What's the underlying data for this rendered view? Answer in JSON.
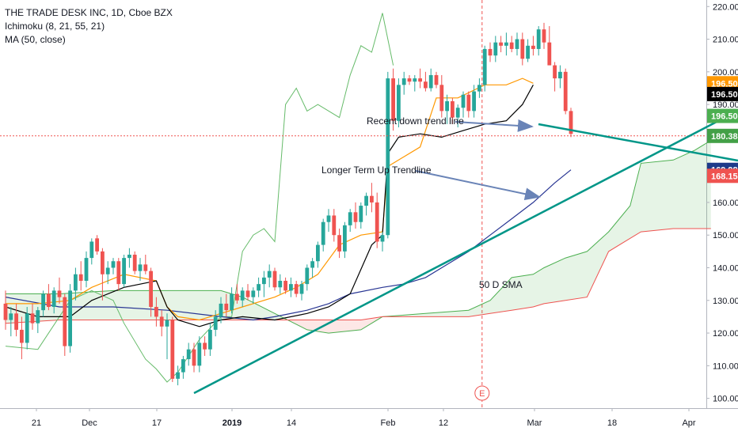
{
  "legend": {
    "symbol": "THE TRADE DESK INC, 1D, Cboe BZX",
    "ichimoku": "Ichimoku (8, 21, 55, 21)",
    "ma": "MA (50, close)"
  },
  "colors": {
    "up": "#26a69a",
    "down": "#ef5350",
    "conversion": "#000000",
    "base": "#ff9800",
    "lagging": "#66bb6a",
    "cloud_bull": "#4caf50",
    "cloud_bear": "#ef5350",
    "sma": "#2962ff",
    "trendline": "#009688",
    "arrow": "#6a84b7",
    "crosshair": "#ef5350"
  },
  "chart_data": {
    "type": "candlestick",
    "title": "THE TRADE DESK INC, 1D, Cboe BZX",
    "ylim": [
      97,
      222
    ],
    "y_ticks": [
      100,
      110,
      120,
      130,
      140,
      150,
      160,
      170,
      180,
      190,
      200,
      210,
      220
    ],
    "x_ticks": [
      "21",
      "Dec",
      "17",
      "2019",
      "14",
      "Feb",
      "12",
      "Mar",
      "18",
      "Apr"
    ],
    "price_labels": [
      {
        "value": "196.50",
        "y": 196.5,
        "color": "#ff9800",
        "text_color": "#ffffff"
      },
      {
        "value": "196.50",
        "y": 193.2,
        "color": "#000000",
        "text_color": "#ffffff"
      },
      {
        "value": "196.50",
        "y": 186.5,
        "color": "#4caf50",
        "text_color": "#ffffff"
      },
      {
        "value": "180.38",
        "y": 180.38,
        "color": "#43a047",
        "text_color": "#ffffff"
      },
      {
        "value": "169.98",
        "y": 169.98,
        "color": "#1e3a8a",
        "text_color": "#ffffff"
      },
      {
        "value": "168.15",
        "y": 168.15,
        "color": "#ef5350",
        "text_color": "#ffffff"
      }
    ],
    "annotations": [
      {
        "text": "Recent down trend line"
      },
      {
        "text": "Longer Term Up Trendline"
      },
      {
        "text": "50 D SMA"
      },
      {
        "text": "E"
      }
    ],
    "candles": [
      [
        129,
        133,
        121,
        124
      ],
      [
        124,
        128,
        119,
        126
      ],
      [
        126,
        129,
        119,
        121
      ],
      [
        121,
        125,
        112,
        117
      ],
      [
        117,
        128,
        115,
        126
      ],
      [
        126,
        129,
        121,
        123
      ],
      [
        123,
        128,
        120,
        127
      ],
      [
        127,
        133,
        125,
        132
      ],
      [
        132,
        135,
        127,
        128
      ],
      [
        128,
        134,
        126,
        133
      ],
      [
        133,
        137,
        129,
        131
      ],
      [
        131,
        132,
        113,
        116
      ],
      [
        116,
        135,
        114,
        133
      ],
      [
        133,
        140,
        130,
        138
      ],
      [
        138,
        142,
        133,
        136
      ],
      [
        136,
        145,
        134,
        143
      ],
      [
        143,
        149,
        141,
        148
      ],
      [
        149,
        150,
        144,
        145
      ],
      [
        145,
        146,
        130,
        138
      ],
      [
        138,
        142,
        135,
        140
      ],
      [
        140,
        143,
        138,
        142
      ],
      [
        142,
        143,
        133,
        135
      ],
      [
        135,
        144,
        134,
        143
      ],
      [
        143,
        146,
        140,
        144
      ],
      [
        144,
        145,
        138,
        139
      ],
      [
        139,
        143,
        136,
        141
      ],
      [
        141,
        144,
        138,
        139
      ],
      [
        139,
        140,
        125,
        128
      ],
      [
        128,
        131,
        122,
        125
      ],
      [
        125,
        127,
        119,
        122
      ],
      [
        122,
        126,
        112,
        124
      ],
      [
        124,
        125,
        105,
        106
      ],
      [
        106,
        110,
        104,
        108
      ],
      [
        108,
        113,
        106,
        112
      ],
      [
        112,
        117,
        110,
        115
      ],
      [
        115,
        117,
        108,
        110
      ],
      [
        110,
        119,
        108,
        117
      ],
      [
        117,
        119,
        113,
        115
      ],
      [
        115,
        123,
        113,
        121
      ],
      [
        121,
        127,
        119,
        125
      ],
      [
        125,
        131,
        123,
        129
      ],
      [
        129,
        132,
        125,
        127
      ],
      [
        127,
        134,
        126,
        132
      ],
      [
        132,
        135,
        129,
        130
      ],
      [
        130,
        134,
        128,
        133
      ],
      [
        133,
        135,
        130,
        131
      ],
      [
        131,
        134,
        129,
        133
      ],
      [
        133,
        137,
        131,
        135
      ],
      [
        135,
        139,
        131,
        137
      ],
      [
        137,
        141,
        134,
        139
      ],
      [
        139,
        140,
        133,
        134
      ],
      [
        134,
        138,
        132,
        136
      ],
      [
        136,
        137,
        132,
        133
      ],
      [
        133,
        137,
        131,
        135
      ],
      [
        135,
        136,
        131,
        132
      ],
      [
        132,
        136,
        130,
        135
      ],
      [
        135,
        141,
        133,
        140
      ],
      [
        140,
        143,
        137,
        142
      ],
      [
        142,
        148,
        140,
        147
      ],
      [
        147,
        155,
        145,
        154
      ],
      [
        154,
        158,
        151,
        156
      ],
      [
        156,
        158,
        148,
        150
      ],
      [
        150,
        152,
        143,
        145
      ],
      [
        145,
        154,
        143,
        153
      ],
      [
        153,
        158,
        151,
        157
      ],
      [
        157,
        160,
        152,
        154
      ],
      [
        154,
        160,
        152,
        159
      ],
      [
        159,
        163,
        156,
        162
      ],
      [
        162,
        166,
        157,
        160
      ],
      [
        160,
        163,
        146,
        148
      ],
      [
        148,
        151,
        145,
        150
      ],
      [
        150,
        200,
        149,
        198
      ],
      [
        198,
        201,
        182,
        185
      ],
      [
        185,
        198,
        183,
        196
      ],
      [
        196,
        200,
        193,
        198
      ],
      [
        198,
        199,
        196,
        197
      ],
      [
        197,
        199,
        194,
        198
      ],
      [
        198,
        201,
        195,
        197
      ],
      [
        197,
        200,
        194,
        195
      ],
      [
        195,
        201,
        194,
        199
      ],
      [
        199,
        200,
        195,
        196
      ],
      [
        196,
        199,
        186,
        188
      ],
      [
        188,
        193,
        184,
        191
      ],
      [
        191,
        192,
        184,
        186
      ],
      [
        186,
        190,
        183,
        189
      ],
      [
        189,
        194,
        186,
        193
      ],
      [
        193,
        194,
        186,
        188
      ],
      [
        188,
        196,
        186,
        194
      ],
      [
        194,
        198,
        192,
        196
      ],
      [
        196,
        208,
        194,
        207
      ],
      [
        207,
        209,
        203,
        205
      ],
      [
        205,
        211,
        203,
        209
      ],
      [
        209,
        211,
        206,
        208
      ],
      [
        208,
        212,
        205,
        209
      ],
      [
        209,
        211,
        206,
        207
      ],
      [
        207,
        212,
        205,
        210
      ],
      [
        210,
        212,
        202,
        204
      ],
      [
        204,
        210,
        203,
        208
      ],
      [
        208,
        211,
        205,
        207
      ],
      [
        207,
        214,
        205,
        213
      ],
      [
        213,
        215,
        207,
        209
      ],
      [
        209,
        214,
        202,
        202
      ],
      [
        202,
        203,
        194,
        198
      ],
      [
        198,
        202,
        195,
        200
      ],
      [
        200,
        201,
        187,
        188
      ],
      [
        188,
        189,
        180,
        181
      ]
    ],
    "series": [
      {
        "name": "Conversion",
        "values": [
          [
            0,
            128
          ],
          [
            6,
            125
          ],
          [
            12,
            125
          ],
          [
            16,
            130
          ],
          [
            22,
            134
          ],
          [
            28,
            136
          ],
          [
            30,
            128
          ],
          [
            32,
            124
          ],
          [
            36,
            122
          ],
          [
            40,
            124
          ],
          [
            44,
            125
          ],
          [
            50,
            124
          ],
          [
            56,
            126
          ],
          [
            60,
            128
          ],
          [
            64,
            132
          ],
          [
            68,
            147
          ],
          [
            70,
            150
          ],
          [
            71,
            175
          ],
          [
            73,
            180
          ],
          [
            77,
            181
          ],
          [
            81,
            180
          ],
          [
            85,
            182
          ],
          [
            89,
            184
          ],
          [
            93,
            185
          ],
          [
            96,
            190
          ],
          [
            98,
            196
          ]
        ]
      },
      {
        "name": "Base",
        "values": [
          [
            0,
            129
          ],
          [
            6,
            129
          ],
          [
            12,
            130
          ],
          [
            16,
            134
          ],
          [
            22,
            138
          ],
          [
            28,
            136
          ],
          [
            30,
            128
          ],
          [
            32,
            125
          ],
          [
            36,
            124
          ],
          [
            40,
            126
          ],
          [
            44,
            128
          ],
          [
            50,
            131
          ],
          [
            54,
            134
          ],
          [
            58,
            138
          ],
          [
            62,
            147
          ],
          [
            66,
            150
          ],
          [
            70,
            151
          ],
          [
            71,
            171
          ],
          [
            74,
            174
          ],
          [
            77,
            177
          ],
          [
            80,
            192
          ],
          [
            84,
            192
          ],
          [
            89,
            196
          ],
          [
            93,
            196
          ],
          [
            96,
            198
          ],
          [
            98,
            196.5
          ]
        ]
      },
      {
        "name": "Lagging",
        "values": [
          [
            0,
            116
          ],
          [
            6,
            115
          ],
          [
            12,
            130
          ],
          [
            16,
            133
          ],
          [
            20,
            130
          ],
          [
            22,
            123
          ],
          [
            26,
            112
          ],
          [
            28,
            109
          ],
          [
            30,
            105
          ],
          [
            32,
            108
          ],
          [
            36,
            118
          ],
          [
            40,
            125
          ],
          [
            42,
            125
          ],
          [
            44,
            145
          ],
          [
            46,
            150
          ],
          [
            48,
            152
          ],
          [
            50,
            148
          ],
          [
            52,
            190
          ],
          [
            54,
            195
          ],
          [
            56,
            188
          ],
          [
            58,
            190
          ],
          [
            62,
            186
          ],
          [
            64,
            199
          ],
          [
            66,
            208
          ],
          [
            68,
            206
          ],
          [
            70,
            218
          ],
          [
            72,
            202
          ]
        ]
      },
      {
        "name": "SpanA",
        "values": [
          [
            0,
            132
          ],
          [
            10,
            132
          ],
          [
            20,
            133
          ],
          [
            30,
            133
          ],
          [
            40,
            133
          ],
          [
            44,
            131
          ],
          [
            50,
            126
          ],
          [
            56,
            121
          ],
          [
            60,
            120
          ],
          [
            66,
            121
          ],
          [
            70,
            125
          ],
          [
            78,
            126
          ],
          [
            86,
            127
          ],
          [
            90,
            130
          ],
          [
            94,
            137
          ],
          [
            98,
            138
          ],
          [
            100,
            140
          ],
          [
            104,
            143
          ],
          [
            108,
            145
          ],
          [
            112,
            151
          ],
          [
            116,
            159
          ],
          [
            118,
            172
          ],
          [
            124,
            173
          ],
          [
            128,
            176
          ],
          [
            131,
            179
          ]
        ]
      },
      {
        "name": "SpanB",
        "values": [
          [
            0,
            123
          ],
          [
            10,
            124
          ],
          [
            20,
            124
          ],
          [
            30,
            124
          ],
          [
            40,
            124
          ],
          [
            44,
            124
          ],
          [
            50,
            124
          ],
          [
            56,
            124
          ],
          [
            60,
            124
          ],
          [
            66,
            124
          ],
          [
            70,
            125
          ],
          [
            78,
            125
          ],
          [
            86,
            125
          ],
          [
            90,
            126
          ],
          [
            94,
            127
          ],
          [
            98,
            128
          ],
          [
            100,
            129
          ],
          [
            104,
            130
          ],
          [
            108,
            131
          ],
          [
            112,
            145
          ],
          [
            116,
            149
          ],
          [
            118,
            151
          ],
          [
            124,
            152
          ],
          [
            128,
            152
          ],
          [
            131,
            152
          ]
        ]
      },
      {
        "name": "SMA50",
        "values": [
          [
            0,
            131
          ],
          [
            10,
            128
          ],
          [
            20,
            128
          ],
          [
            30,
            127
          ],
          [
            40,
            125
          ],
          [
            46,
            124
          ],
          [
            50,
            125
          ],
          [
            56,
            127
          ],
          [
            60,
            129
          ],
          [
            64,
            132
          ],
          [
            70,
            134
          ],
          [
            74,
            135
          ],
          [
            78,
            137
          ],
          [
            82,
            141
          ],
          [
            86,
            145
          ],
          [
            90,
            150
          ],
          [
            94,
            155
          ],
          [
            98,
            160
          ],
          [
            102,
            166
          ],
          [
            105,
            170
          ]
        ]
      }
    ]
  }
}
